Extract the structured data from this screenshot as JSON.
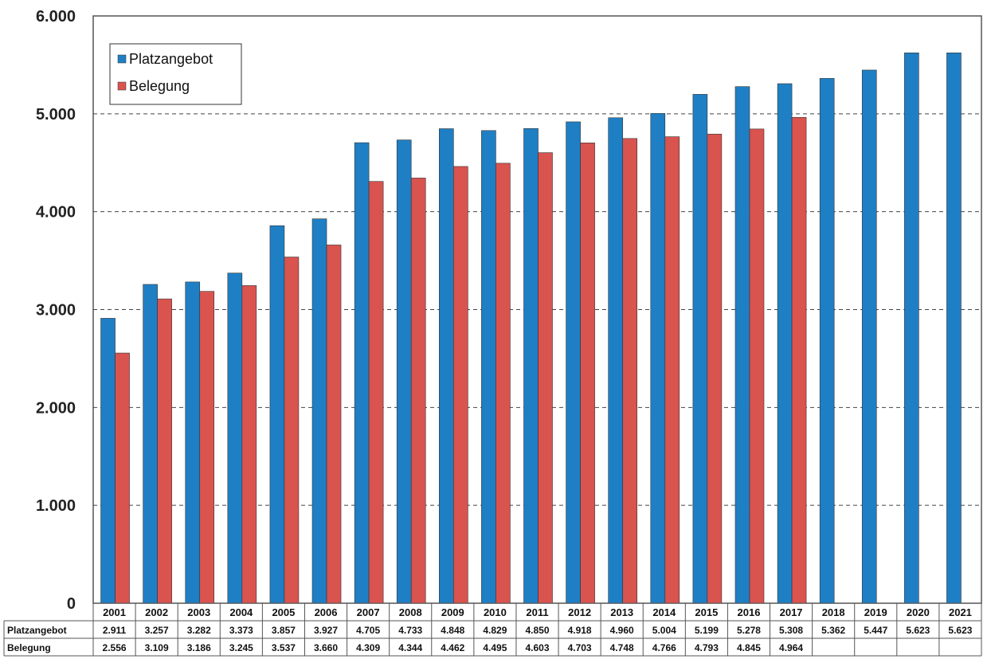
{
  "chart_data": {
    "type": "bar",
    "categories": [
      "2001",
      "2002",
      "2003",
      "2004",
      "2005",
      "2006",
      "2007",
      "2008",
      "2009",
      "2010",
      "2011",
      "2012",
      "2013",
      "2014",
      "2015",
      "2016",
      "2017",
      "2018",
      "2019",
      "2020",
      "2021"
    ],
    "series": [
      {
        "name": "Platzangebot",
        "color": "#1f7fc4",
        "values": [
          2911,
          3257,
          3282,
          3373,
          3857,
          3927,
          4705,
          4733,
          4848,
          4829,
          4850,
          4918,
          4960,
          5004,
          5199,
          5278,
          5308,
          5362,
          5447,
          5623,
          5623
        ],
        "labels": [
          "2.911",
          "3.257",
          "3.282",
          "3.373",
          "3.857",
          "3.927",
          "4.705",
          "4.733",
          "4.848",
          "4.829",
          "4.850",
          "4.918",
          "4.960",
          "5.004",
          "5.199",
          "5.278",
          "5.308",
          "5.362",
          "5.447",
          "5.623",
          "5.623"
        ]
      },
      {
        "name": "Belegung",
        "color": "#d9534f",
        "values": [
          2556,
          3109,
          3186,
          3245,
          3537,
          3660,
          4309,
          4344,
          4462,
          4495,
          4603,
          4703,
          4748,
          4766,
          4793,
          4845,
          4964,
          null,
          null,
          null,
          null
        ],
        "labels": [
          "2.556",
          "3.109",
          "3.186",
          "3.245",
          "3.537",
          "3.660",
          "4.309",
          "4.344",
          "4.462",
          "4.495",
          "4.603",
          "4.703",
          "4.748",
          "4.766",
          "4.793",
          "4.845",
          "4.964",
          "",
          "",
          "",
          ""
        ]
      }
    ],
    "ylim": [
      0,
      6000
    ],
    "yticks": [
      0,
      1000,
      2000,
      3000,
      4000,
      5000,
      6000
    ],
    "ytick_labels": [
      "0",
      "1.000",
      "2.000",
      "3.000",
      "4.000",
      "5.000",
      "6.000"
    ],
    "grid": "dashed horizontal",
    "legend_position": "top-left",
    "data_table": true
  }
}
